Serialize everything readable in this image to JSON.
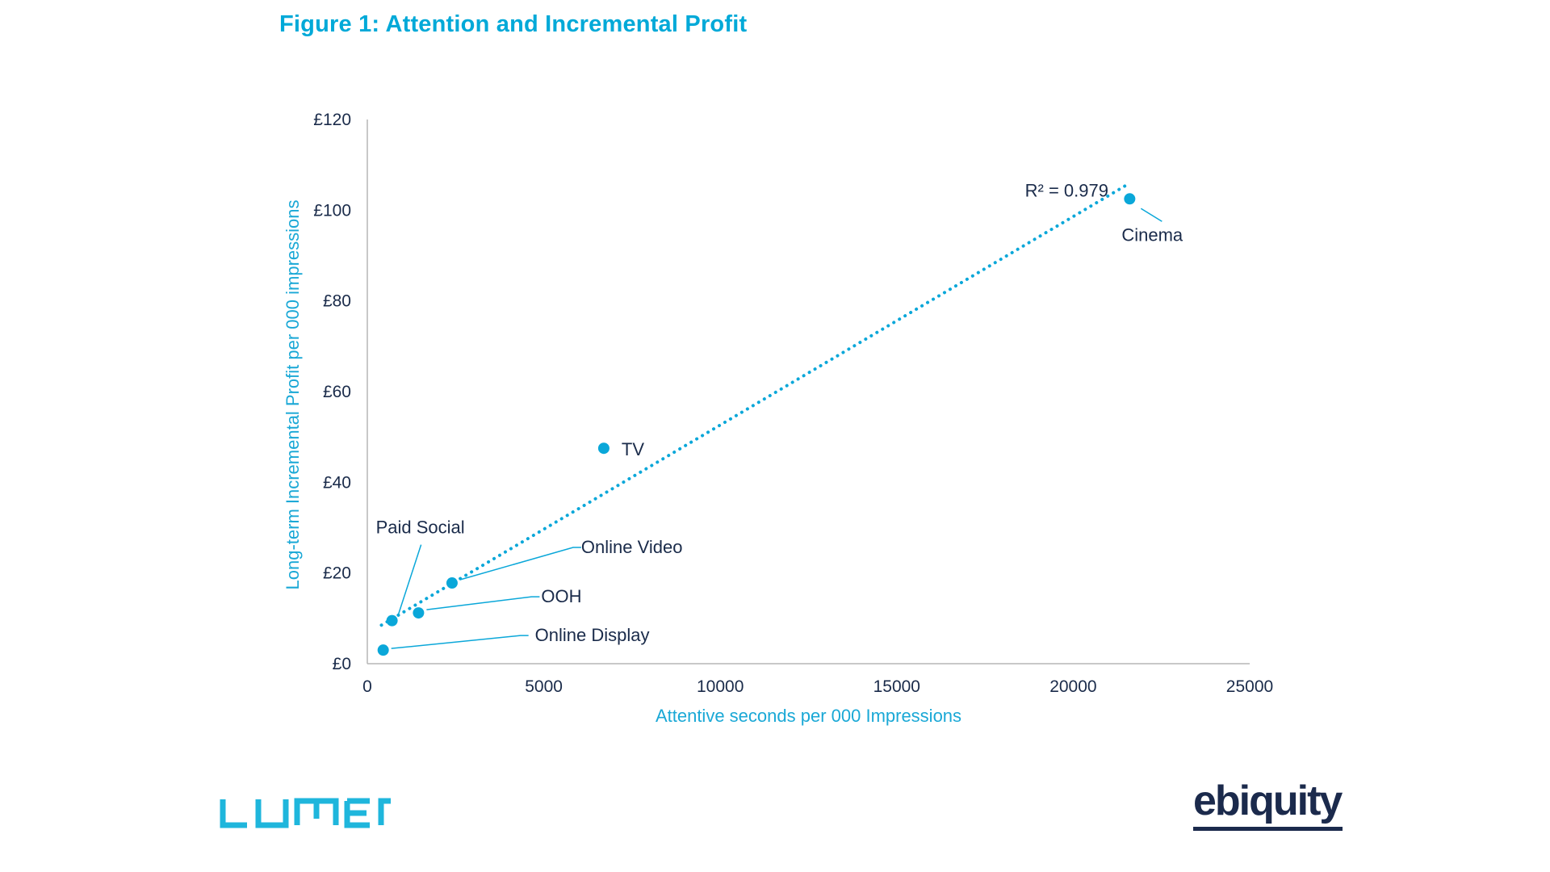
{
  "title": "Figure 1: Attention and Incremental Profit",
  "colors": {
    "accent": "#00a9d8",
    "point": "#0aa7d9",
    "axis": "#b5b5b5",
    "text": "#1a2b4a",
    "ebiquity": "#1b2a4c"
  },
  "logos": {
    "lumen": "LUMEN",
    "ebiquity": "ebiquity"
  },
  "chart_data": {
    "type": "scatter",
    "xlabel": "Attentive seconds per 000 Impressions",
    "ylabel": "Long-term Incremental Profit per 000 impressions",
    "xlim": [
      0,
      25000
    ],
    "ylim": [
      0,
      120
    ],
    "x_ticks": [
      "0",
      "5000",
      "10000",
      "15000",
      "20000",
      "25000"
    ],
    "y_ticks": [
      "£0",
      "£20",
      "£40",
      "£60",
      "£80",
      "£100",
      "£120"
    ],
    "grid": false,
    "points": [
      {
        "label": "Cinema",
        "x": 21600,
        "y": 102.5
      },
      {
        "label": "TV",
        "x": 6700,
        "y": 47.5
      },
      {
        "label": "Online Video",
        "x": 2400,
        "y": 17.8
      },
      {
        "label": "OOH",
        "x": 1450,
        "y": 11.2
      },
      {
        "label": "Paid Social",
        "x": 700,
        "y": 9.5
      },
      {
        "label": "Online Display",
        "x": 450,
        "y": 3.0
      }
    ],
    "trendline": {
      "type": "linear",
      "style": "dotted",
      "x_start": 400,
      "y_start": 8.5,
      "x_end": 21500,
      "y_end": 105.5,
      "r_squared_label": "R² = 0.979"
    }
  }
}
